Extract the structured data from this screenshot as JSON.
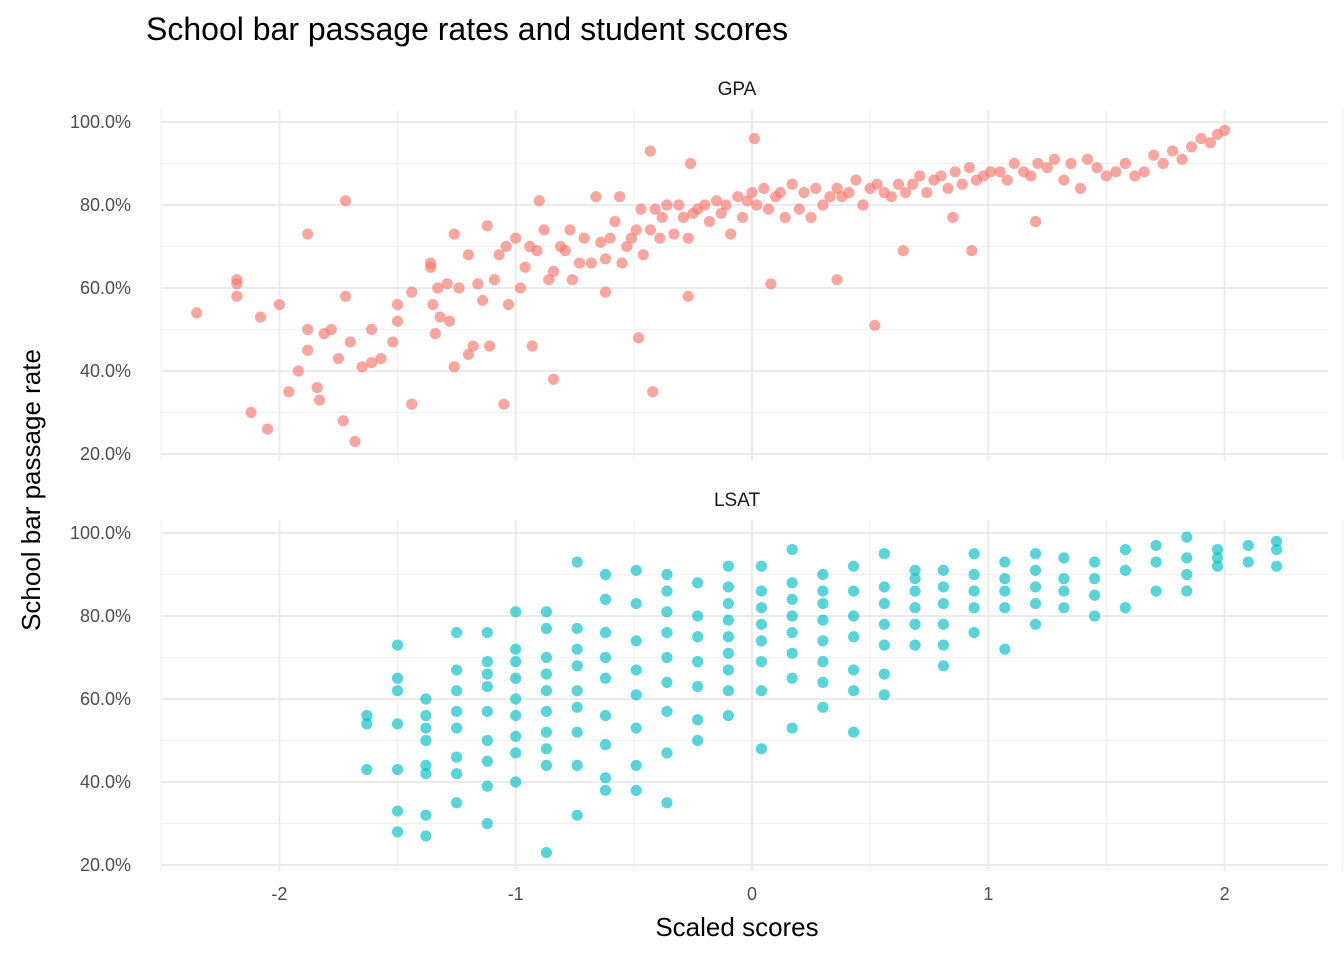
{
  "chart_data": {
    "type": "scatter",
    "title": "School bar passage rates and student scores",
    "xlabel": "Scaled scores",
    "ylabel": "School bar passage rate",
    "xlim": [
      -2.6,
      2.6
    ],
    "ylim": [
      0.19,
      1.03
    ],
    "x_ticks": [
      -2,
      -1,
      0,
      1,
      2
    ],
    "x_tick_labels": [
      "-2",
      "-1",
      "0",
      "1",
      "2"
    ],
    "y_ticks": [
      0.2,
      0.4,
      0.6,
      0.8,
      1.0
    ],
    "y_tick_labels": [
      "20.0%",
      "40.0%",
      "60.0%",
      "80.0%",
      "100.0%"
    ],
    "grid": true,
    "legend": "none",
    "colors": {
      "GPA": "#F8766D",
      "LSAT": "#00BFC4"
    },
    "point_opacity": 0.65,
    "panels": [
      {
        "name": "GPA",
        "x": [
          -2.35,
          -2.18,
          -2.18,
          -2.18,
          -2.12,
          -2.08,
          -2.05,
          -2.0,
          -1.96,
          -1.92,
          -1.88,
          -1.88,
          -1.88,
          -1.84,
          -1.81,
          -1.78,
          -1.75,
          -1.72,
          -1.72,
          -1.7,
          -1.65,
          -1.61,
          -1.61,
          -1.57,
          -1.52,
          -1.5,
          -1.5,
          -1.44,
          -1.36,
          -1.35,
          -1.34,
          -1.33,
          -1.32,
          -1.29,
          -1.28,
          -1.26,
          -1.24,
          -1.2,
          -1.18,
          -1.16,
          -1.14,
          -1.12,
          -1.11,
          -1.09,
          -1.07,
          -1.04,
          -1.03,
          -1.0,
          -0.98,
          -0.96,
          -0.94,
          -0.91,
          -0.9,
          -0.88,
          -0.86,
          -0.84,
          -0.81,
          -0.79,
          -0.77,
          -0.76,
          -0.73,
          -0.71,
          -0.68,
          -0.66,
          -0.64,
          -0.62,
          -0.6,
          -0.58,
          -0.56,
          -0.55,
          -0.53,
          -0.51,
          -0.49,
          -0.47,
          -0.46,
          -0.43,
          -0.41,
          -0.39,
          -0.38,
          -0.36,
          -0.33,
          -0.31,
          -0.29,
          -0.27,
          -0.25,
          -0.23,
          -0.2,
          -0.18,
          -0.15,
          -0.13,
          -0.11,
          -0.09,
          -0.06,
          -0.04,
          -0.02,
          0.0,
          0.02,
          0.05,
          0.07,
          0.1,
          0.12,
          0.14,
          0.17,
          0.2,
          0.22,
          0.25,
          0.27,
          0.3,
          0.33,
          0.36,
          0.38,
          0.41,
          0.44,
          0.47,
          0.5,
          0.53,
          0.56,
          0.59,
          0.62,
          0.65,
          0.68,
          0.71,
          0.74,
          0.77,
          0.8,
          0.83,
          0.86,
          0.89,
          0.92,
          0.95,
          0.98,
          1.01,
          1.05,
          1.08,
          1.11,
          1.15,
          1.18,
          1.21,
          1.25,
          1.28,
          1.32,
          1.35,
          1.39,
          1.42,
          1.46,
          1.5,
          1.54,
          1.58,
          1.62,
          1.66,
          1.7,
          1.74,
          1.78,
          1.82,
          1.86,
          1.9,
          1.94,
          1.97,
          2.0,
          -1.68,
          -1.73,
          -1.83,
          -1.44,
          -1.26,
          -1.05,
          -0.84,
          -0.42,
          -0.48,
          0.52,
          0.93,
          -1.36,
          -1.2,
          -0.93,
          -0.62,
          -0.27,
          0.08,
          0.36,
          0.64,
          0.85,
          1.2,
          -0.43,
          0.01,
          -0.26
        ],
        "y": [
          0.54,
          0.62,
          0.61,
          0.58,
          0.3,
          0.53,
          0.26,
          0.56,
          0.35,
          0.4,
          0.45,
          0.5,
          0.73,
          0.36,
          0.49,
          0.5,
          0.43,
          0.81,
          0.58,
          0.47,
          0.41,
          0.5,
          0.42,
          0.43,
          0.47,
          0.52,
          0.56,
          0.59,
          0.65,
          0.56,
          0.49,
          0.6,
          0.53,
          0.61,
          0.52,
          0.73,
          0.6,
          0.68,
          0.46,
          0.61,
          0.57,
          0.75,
          0.46,
          0.62,
          0.68,
          0.7,
          0.56,
          0.72,
          0.6,
          0.65,
          0.7,
          0.69,
          0.81,
          0.74,
          0.62,
          0.64,
          0.7,
          0.69,
          0.74,
          0.62,
          0.66,
          0.72,
          0.66,
          0.82,
          0.71,
          0.67,
          0.72,
          0.76,
          0.82,
          0.66,
          0.7,
          0.72,
          0.74,
          0.79,
          0.68,
          0.74,
          0.79,
          0.72,
          0.77,
          0.8,
          0.73,
          0.8,
          0.77,
          0.72,
          0.78,
          0.79,
          0.8,
          0.76,
          0.81,
          0.78,
          0.8,
          0.73,
          0.82,
          0.77,
          0.81,
          0.83,
          0.8,
          0.84,
          0.79,
          0.82,
          0.83,
          0.77,
          0.85,
          0.79,
          0.83,
          0.77,
          0.84,
          0.8,
          0.82,
          0.84,
          0.82,
          0.83,
          0.86,
          0.8,
          0.84,
          0.85,
          0.83,
          0.82,
          0.85,
          0.83,
          0.85,
          0.87,
          0.83,
          0.86,
          0.87,
          0.84,
          0.88,
          0.85,
          0.89,
          0.86,
          0.87,
          0.88,
          0.88,
          0.86,
          0.9,
          0.88,
          0.87,
          0.9,
          0.89,
          0.91,
          0.86,
          0.9,
          0.84,
          0.91,
          0.89,
          0.87,
          0.88,
          0.9,
          0.87,
          0.88,
          0.92,
          0.9,
          0.93,
          0.91,
          0.94,
          0.96,
          0.95,
          0.97,
          0.98,
          0.23,
          0.28,
          0.33,
          0.32,
          0.41,
          0.32,
          0.38,
          0.35,
          0.48,
          0.51,
          0.69,
          0.66,
          0.44,
          0.46,
          0.59,
          0.58,
          0.61,
          0.62,
          0.69,
          0.77,
          0.76,
          0.93,
          0.96,
          0.9
        ]
      },
      {
        "name": "LSAT",
        "x": [
          -1.63,
          -1.63,
          -1.63,
          -1.5,
          -1.5,
          -1.5,
          -1.5,
          -1.5,
          -1.5,
          -1.5,
          -1.38,
          -1.38,
          -1.38,
          -1.38,
          -1.38,
          -1.38,
          -1.38,
          -1.38,
          -1.25,
          -1.25,
          -1.25,
          -1.25,
          -1.25,
          -1.25,
          -1.25,
          -1.25,
          -1.12,
          -1.12,
          -1.12,
          -1.12,
          -1.12,
          -1.12,
          -1.12,
          -1.12,
          -1.12,
          -1.0,
          -1.0,
          -1.0,
          -1.0,
          -1.0,
          -1.0,
          -1.0,
          -1.0,
          -1.0,
          -0.87,
          -0.87,
          -0.87,
          -0.87,
          -0.87,
          -0.87,
          -0.87,
          -0.87,
          -0.87,
          -0.87,
          -0.74,
          -0.74,
          -0.74,
          -0.74,
          -0.74,
          -0.74,
          -0.74,
          -0.74,
          -0.74,
          -0.62,
          -0.62,
          -0.62,
          -0.62,
          -0.62,
          -0.62,
          -0.62,
          -0.62,
          -0.62,
          -0.49,
          -0.49,
          -0.49,
          -0.49,
          -0.49,
          -0.49,
          -0.49,
          -0.49,
          -0.36,
          -0.36,
          -0.36,
          -0.36,
          -0.36,
          -0.36,
          -0.36,
          -0.36,
          -0.36,
          -0.23,
          -0.23,
          -0.23,
          -0.23,
          -0.23,
          -0.23,
          -0.23,
          -0.1,
          -0.1,
          -0.1,
          -0.1,
          -0.1,
          -0.1,
          -0.1,
          -0.1,
          -0.1,
          0.04,
          0.04,
          0.04,
          0.04,
          0.04,
          0.04,
          0.04,
          0.04,
          0.17,
          0.17,
          0.17,
          0.17,
          0.17,
          0.17,
          0.17,
          0.17,
          0.3,
          0.3,
          0.3,
          0.3,
          0.3,
          0.3,
          0.3,
          0.3,
          0.43,
          0.43,
          0.43,
          0.43,
          0.43,
          0.43,
          0.43,
          0.56,
          0.56,
          0.56,
          0.56,
          0.56,
          0.56,
          0.56,
          0.69,
          0.69,
          0.69,
          0.69,
          0.69,
          0.69,
          0.81,
          0.81,
          0.81,
          0.81,
          0.81,
          0.81,
          0.94,
          0.94,
          0.94,
          0.94,
          0.94,
          1.07,
          1.07,
          1.07,
          1.07,
          1.07,
          1.2,
          1.2,
          1.2,
          1.2,
          1.2,
          1.32,
          1.32,
          1.32,
          1.32,
          1.45,
          1.45,
          1.45,
          1.45,
          1.58,
          1.58,
          1.58,
          1.71,
          1.71,
          1.71,
          1.84,
          1.84,
          1.84,
          1.84,
          1.97,
          1.97,
          1.97,
          2.1,
          2.1,
          2.22,
          2.22,
          2.22
        ],
        "y": [
          0.43,
          0.54,
          0.56,
          0.28,
          0.33,
          0.43,
          0.54,
          0.62,
          0.65,
          0.73,
          0.27,
          0.32,
          0.42,
          0.44,
          0.5,
          0.53,
          0.56,
          0.6,
          0.35,
          0.42,
          0.46,
          0.53,
          0.57,
          0.62,
          0.67,
          0.76,
          0.3,
          0.39,
          0.45,
          0.5,
          0.57,
          0.63,
          0.66,
          0.69,
          0.76,
          0.4,
          0.47,
          0.51,
          0.56,
          0.6,
          0.65,
          0.69,
          0.72,
          0.81,
          0.23,
          0.44,
          0.48,
          0.52,
          0.57,
          0.62,
          0.66,
          0.7,
          0.77,
          0.81,
          0.32,
          0.44,
          0.52,
          0.58,
          0.62,
          0.68,
          0.72,
          0.77,
          0.93,
          0.38,
          0.41,
          0.49,
          0.56,
          0.65,
          0.7,
          0.76,
          0.84,
          0.9,
          0.38,
          0.44,
          0.53,
          0.61,
          0.67,
          0.74,
          0.83,
          0.91,
          0.35,
          0.47,
          0.57,
          0.64,
          0.7,
          0.76,
          0.81,
          0.86,
          0.9,
          0.5,
          0.55,
          0.63,
          0.69,
          0.75,
          0.8,
          0.88,
          0.56,
          0.62,
          0.67,
          0.71,
          0.75,
          0.79,
          0.83,
          0.87,
          0.92,
          0.48,
          0.62,
          0.69,
          0.74,
          0.78,
          0.82,
          0.86,
          0.92,
          0.53,
          0.65,
          0.71,
          0.76,
          0.8,
          0.84,
          0.88,
          0.96,
          0.58,
          0.64,
          0.69,
          0.74,
          0.79,
          0.83,
          0.86,
          0.9,
          0.52,
          0.62,
          0.67,
          0.75,
          0.8,
          0.86,
          0.92,
          0.61,
          0.66,
          0.73,
          0.78,
          0.83,
          0.87,
          0.95,
          0.73,
          0.78,
          0.82,
          0.86,
          0.89,
          0.91,
          0.68,
          0.73,
          0.78,
          0.83,
          0.87,
          0.91,
          0.76,
          0.82,
          0.86,
          0.9,
          0.95,
          0.72,
          0.82,
          0.86,
          0.89,
          0.93,
          0.78,
          0.83,
          0.87,
          0.91,
          0.95,
          0.82,
          0.86,
          0.89,
          0.94,
          0.8,
          0.85,
          0.89,
          0.93,
          0.82,
          0.91,
          0.96,
          0.86,
          0.93,
          0.97,
          0.86,
          0.9,
          0.94,
          0.99,
          0.92,
          0.94,
          0.96,
          0.93,
          0.97,
          0.92,
          0.96,
          0.98
        ]
      }
    ]
  }
}
